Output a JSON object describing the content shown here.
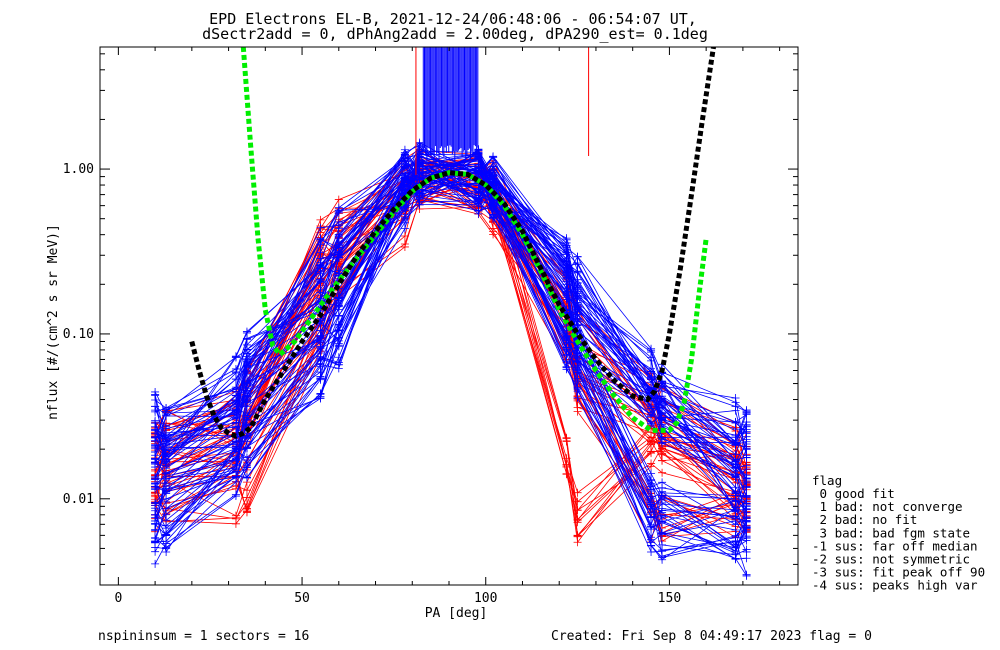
{
  "chart_data": {
    "type": "line",
    "title": "EPD Electrons EL-B, 2021-12-24/06:48:06 - 06:54:07 UT,",
    "subtitle": "dSectr2add = 0, dPhAng2add = 2.00deg, dPA290_est=   0.1deg",
    "xlabel": "PA [deg]",
    "ylabel": "nflux [#/(cm^2 s sr MeV)]",
    "xlim": [
      -5,
      185
    ],
    "ylim": [
      0.003,
      5.5
    ],
    "yscale": "log",
    "xticks": [
      {
        "v": 0,
        "label": "0"
      },
      {
        "v": 50,
        "label": "50"
      },
      {
        "v": 100,
        "label": "100"
      },
      {
        "v": 150,
        "label": "150"
      }
    ],
    "yticks": [
      {
        "v": 0.01,
        "label": "0.01"
      },
      {
        "v": 0.1,
        "label": "0.10"
      },
      {
        "v": 1.0,
        "label": "1.00"
      }
    ],
    "grid": false,
    "profile_pa": [
      10,
      13,
      32,
      35,
      55,
      60,
      78,
      82,
      98,
      102,
      122,
      125,
      145,
      148,
      168,
      171
    ],
    "sample_profiles": {
      "blue": [
        [
          0.022,
          0.022,
          0.035,
          0.05,
          0.12,
          0.2,
          0.78,
          0.95,
          0.9,
          0.8,
          0.2,
          0.1,
          0.04,
          0.03,
          0.02,
          0.019
        ],
        [
          0.015,
          0.018,
          0.03,
          0.045,
          0.3,
          0.4,
          0.85,
          0.95,
          0.85,
          0.75,
          0.25,
          0.15,
          0.05,
          0.04,
          0.012,
          0.01
        ],
        [
          0.009,
          0.01,
          0.02,
          0.03,
          0.08,
          0.12,
          0.7,
          0.9,
          0.88,
          0.7,
          0.12,
          0.08,
          0.01,
          0.009,
          0.007,
          0.007
        ],
        [
          0.03,
          0.025,
          0.05,
          0.07,
          0.2,
          0.3,
          0.9,
          1.0,
          0.95,
          0.85,
          0.28,
          0.2,
          0.055,
          0.045,
          0.03,
          0.026
        ],
        [
          0.006,
          0.007,
          0.015,
          0.02,
          0.06,
          0.09,
          0.65,
          0.85,
          0.8,
          0.65,
          0.09,
          0.06,
          0.007,
          0.006,
          0.006,
          0.005
        ]
      ],
      "red": [
        [
          0.012,
          0.014,
          0.02,
          0.03,
          0.15,
          0.25,
          0.7,
          0.85,
          0.8,
          0.7,
          0.12,
          0.05,
          0.03,
          0.025,
          0.015,
          0.014
        ],
        [
          0.02,
          0.025,
          0.03,
          0.04,
          0.35,
          0.45,
          0.8,
          0.9,
          0.85,
          0.75,
          0.02,
          0.008,
          0.02,
          0.018,
          0.01,
          0.009
        ],
        [
          0.008,
          0.01,
          0.01,
          0.012,
          0.1,
          0.2,
          0.5,
          0.8,
          0.75,
          0.6,
          0.1,
          0.05,
          0.008,
          0.008,
          0.008,
          0.008
        ],
        [
          0.018,
          0.02,
          0.028,
          0.035,
          0.25,
          0.35,
          0.75,
          0.9,
          0.85,
          0.8,
          0.18,
          0.1,
          0.04,
          0.035,
          0.02,
          0.018
        ]
      ]
    },
    "fit_curves": [
      {
        "color": "#00ee00",
        "x": [
          34,
          36,
          38,
          40,
          42,
          44,
          48,
          52,
          56,
          60,
          65,
          70,
          75,
          80,
          85,
          90,
          95,
          100,
          105,
          110,
          115,
          120,
          125,
          130,
          135,
          140,
          145,
          150,
          152,
          154,
          156,
          158,
          160
        ],
        "y": [
          5.5,
          1.4,
          0.38,
          0.14,
          0.085,
          0.075,
          0.09,
          0.12,
          0.16,
          0.21,
          0.29,
          0.4,
          0.55,
          0.73,
          0.88,
          0.95,
          0.93,
          0.8,
          0.6,
          0.4,
          0.24,
          0.14,
          0.09,
          0.06,
          0.042,
          0.031,
          0.026,
          0.026,
          0.029,
          0.038,
          0.07,
          0.17,
          0.38
        ]
      },
      {
        "color": "#000000",
        "x": [
          20,
          22,
          24,
          26,
          28,
          30,
          32,
          34,
          36,
          40,
          45,
          50,
          55,
          60,
          65,
          70,
          75,
          80,
          85,
          90,
          95,
          100,
          105,
          110,
          115,
          120,
          125,
          130,
          135,
          140,
          144,
          146,
          148,
          150,
          153,
          156,
          159,
          162
        ],
        "y": [
          0.09,
          0.06,
          0.042,
          0.032,
          0.027,
          0.025,
          0.024,
          0.025,
          0.027,
          0.04,
          0.06,
          0.09,
          0.13,
          0.2,
          0.3,
          0.42,
          0.57,
          0.74,
          0.88,
          0.95,
          0.93,
          0.8,
          0.62,
          0.42,
          0.25,
          0.15,
          0.1,
          0.07,
          0.052,
          0.042,
          0.04,
          0.045,
          0.06,
          0.1,
          0.25,
          0.7,
          2.0,
          5.5
        ]
      }
    ],
    "annotations": {
      "legend_title": "flag",
      "legend_items": [
        " 0 good fit",
        " 1 bad: not converge",
        " 2 bad: no fit",
        " 3 bad: bad fgm state",
        "-1 sus: far off median",
        "-2 sus: not symmetric",
        "-3 sus: fit peak off 90",
        "-4 sus: peaks high var"
      ],
      "footer_left": "nspininsum =  1  sectors = 16",
      "footer_right": "Created: Fri Sep  8 04:49:17 2023   flag = 0"
    },
    "colors": {
      "series_blue": "#0000ff",
      "series_red": "#ff0000",
      "fit_green": "#00ee00",
      "fit_black": "#000000"
    }
  }
}
